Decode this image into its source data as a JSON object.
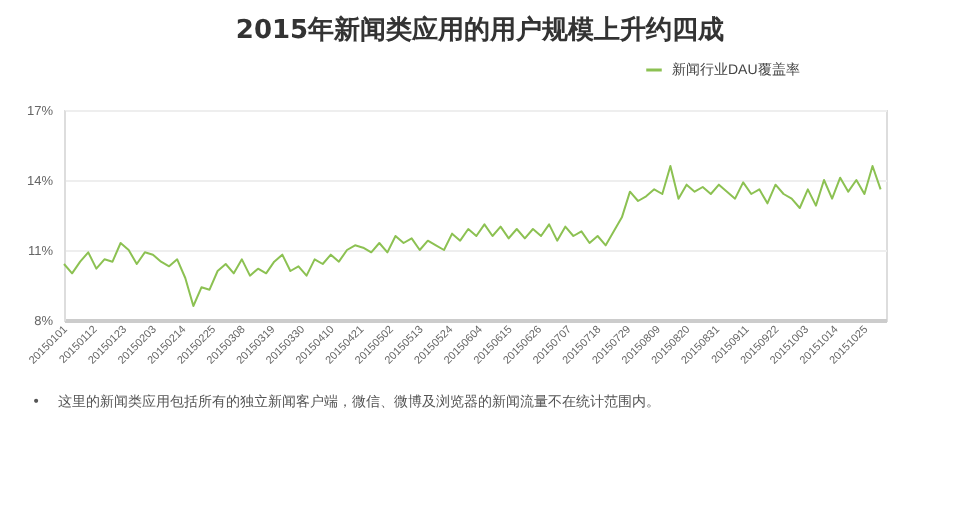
{
  "chart_data": {
    "type": "line",
    "title": "2015年新闻类应用的用户规模上升约四成",
    "annotations": [
      "•    这里的新闻类应用包括所有的独立新闻客户端，微信、微博及浏览器的新闻流量不在统计范围内。"
    ],
    "x": [
      "2015-01-01",
      "2015-01-04",
      "2015-01-07",
      "2015-01-10",
      "2015-01-13",
      "2015-01-16",
      "2015-01-19",
      "2015-01-22",
      "2015-01-25",
      "2015-01-28",
      "2015-01-31",
      "2015-02-03",
      "2015-02-06",
      "2015-02-09",
      "2015-02-12",
      "2015-02-15",
      "2015-02-18",
      "2015-02-21",
      "2015-02-24",
      "2015-02-27",
      "2015-03-02",
      "2015-03-05",
      "2015-03-08",
      "2015-03-11",
      "2015-03-14",
      "2015-03-17",
      "2015-03-20",
      "2015-03-23",
      "2015-03-26",
      "2015-03-29",
      "2015-04-01",
      "2015-04-04",
      "2015-04-07",
      "2015-04-10",
      "2015-04-13",
      "2015-04-16",
      "2015-04-19",
      "2015-04-22",
      "2015-04-25",
      "2015-04-28",
      "2015-05-01",
      "2015-05-04",
      "2015-05-07",
      "2015-05-10",
      "2015-05-13",
      "2015-05-16",
      "2015-05-19",
      "2015-05-22",
      "2015-05-25",
      "2015-05-28",
      "2015-05-31",
      "2015-06-03",
      "2015-06-06",
      "2015-06-09",
      "2015-06-12",
      "2015-06-15",
      "2015-06-18",
      "2015-06-21",
      "2015-06-24",
      "2015-06-27",
      "2015-06-30",
      "2015-07-03",
      "2015-07-06",
      "2015-07-09",
      "2015-07-12",
      "2015-07-15",
      "2015-07-18",
      "2015-07-21",
      "2015-07-24",
      "2015-07-27",
      "2015-07-30",
      "2015-08-02",
      "2015-08-05",
      "2015-08-08",
      "2015-08-11",
      "2015-08-14",
      "2015-08-17",
      "2015-08-20",
      "2015-08-23",
      "2015-08-26",
      "2015-08-29",
      "2015-09-01",
      "2015-09-04",
      "2015-09-07",
      "2015-09-10",
      "2015-09-13",
      "2015-09-16",
      "2015-09-19",
      "2015-09-22",
      "2015-09-25",
      "2015-09-28",
      "2015-10-01",
      "2015-10-04",
      "2015-10-07",
      "2015-10-10",
      "2015-10-13",
      "2015-10-16",
      "2015-10-19",
      "2015-10-22",
      "2015-10-25",
      "2015-10-28",
      "2015-10-31"
    ],
    "series": [
      {
        "name": "新闻行业DAU覆盖率",
        "color": "#8cc152",
        "values": [
          10.4,
          10.0,
          10.5,
          10.9,
          10.2,
          10.6,
          10.5,
          11.3,
          11.0,
          10.4,
          10.9,
          10.8,
          10.5,
          10.3,
          10.6,
          9.8,
          8.6,
          9.4,
          9.3,
          10.1,
          10.4,
          10.0,
          10.6,
          9.9,
          10.2,
          10.0,
          10.5,
          10.8,
          10.1,
          10.3,
          9.9,
          10.6,
          10.4,
          10.8,
          10.5,
          11.0,
          11.2,
          11.1,
          10.9,
          11.3,
          10.9,
          11.6,
          11.3,
          11.5,
          11.0,
          11.4,
          11.2,
          11.0,
          11.7,
          11.4,
          11.9,
          11.6,
          12.1,
          11.6,
          12.0,
          11.5,
          11.9,
          11.5,
          11.9,
          11.6,
          12.1,
          11.4,
          12.0,
          11.6,
          11.8,
          11.3,
          11.6,
          11.2,
          11.8,
          12.4,
          13.5,
          13.1,
          13.3,
          13.6,
          13.4,
          14.6,
          13.2,
          13.8,
          13.5,
          13.7,
          13.4,
          13.8,
          13.5,
          13.2,
          13.9,
          13.4,
          13.6,
          13.0,
          13.8,
          13.4,
          13.2,
          12.8,
          13.6,
          12.9,
          14.0,
          13.2,
          14.1,
          13.5,
          14.0,
          13.4,
          14.6,
          13.6
        ]
      }
    ],
    "xlim": [
      "2015-01-01",
      "2015-11-02"
    ],
    "xticks": [
      {
        "value": "2015-01-01",
        "label": "20150101"
      },
      {
        "value": "2015-01-12",
        "label": "20150112"
      },
      {
        "value": "2015-01-23",
        "label": "20150123"
      },
      {
        "value": "2015-02-03",
        "label": "20150203"
      },
      {
        "value": "2015-02-14",
        "label": "20150214"
      },
      {
        "value": "2015-02-25",
        "label": "20150225"
      },
      {
        "value": "2015-03-08",
        "label": "20150308"
      },
      {
        "value": "2015-03-19",
        "label": "20150319"
      },
      {
        "value": "2015-03-30",
        "label": "20150330"
      },
      {
        "value": "2015-04-10",
        "label": "20150410"
      },
      {
        "value": "2015-04-21",
        "label": "20150421"
      },
      {
        "value": "2015-05-02",
        "label": "20150502"
      },
      {
        "value": "2015-05-13",
        "label": "20150513"
      },
      {
        "value": "2015-05-24",
        "label": "20150524"
      },
      {
        "value": "2015-06-04",
        "label": "20150604"
      },
      {
        "value": "2015-06-15",
        "label": "20150615"
      },
      {
        "value": "2015-06-26",
        "label": "20150626"
      },
      {
        "value": "2015-07-07",
        "label": "20150707"
      },
      {
        "value": "2015-07-18",
        "label": "20150718"
      },
      {
        "value": "2015-07-29",
        "label": "20150729"
      },
      {
        "value": "2015-08-09",
        "label": "20150809"
      },
      {
        "value": "2015-08-20",
        "label": "20150820"
      },
      {
        "value": "2015-08-31",
        "label": "20150831"
      },
      {
        "value": "2015-09-11",
        "label": "20150911"
      },
      {
        "value": "2015-09-22",
        "label": "20150922"
      },
      {
        "value": "2015-10-03",
        "label": "20151003"
      },
      {
        "value": "2015-10-14",
        "label": "20151014"
      },
      {
        "value": "2015-10-25",
        "label": "20151025"
      }
    ],
    "ylim": [
      8,
      17
    ],
    "yticks": [
      {
        "value": 8,
        "label": "8%"
      },
      {
        "value": 11,
        "label": "11%"
      },
      {
        "value": 14,
        "label": "14%"
      },
      {
        "value": 17,
        "label": "17%"
      }
    ],
    "grid": "y",
    "legend": "top right",
    "marker": "none",
    "line_style": "solid"
  }
}
